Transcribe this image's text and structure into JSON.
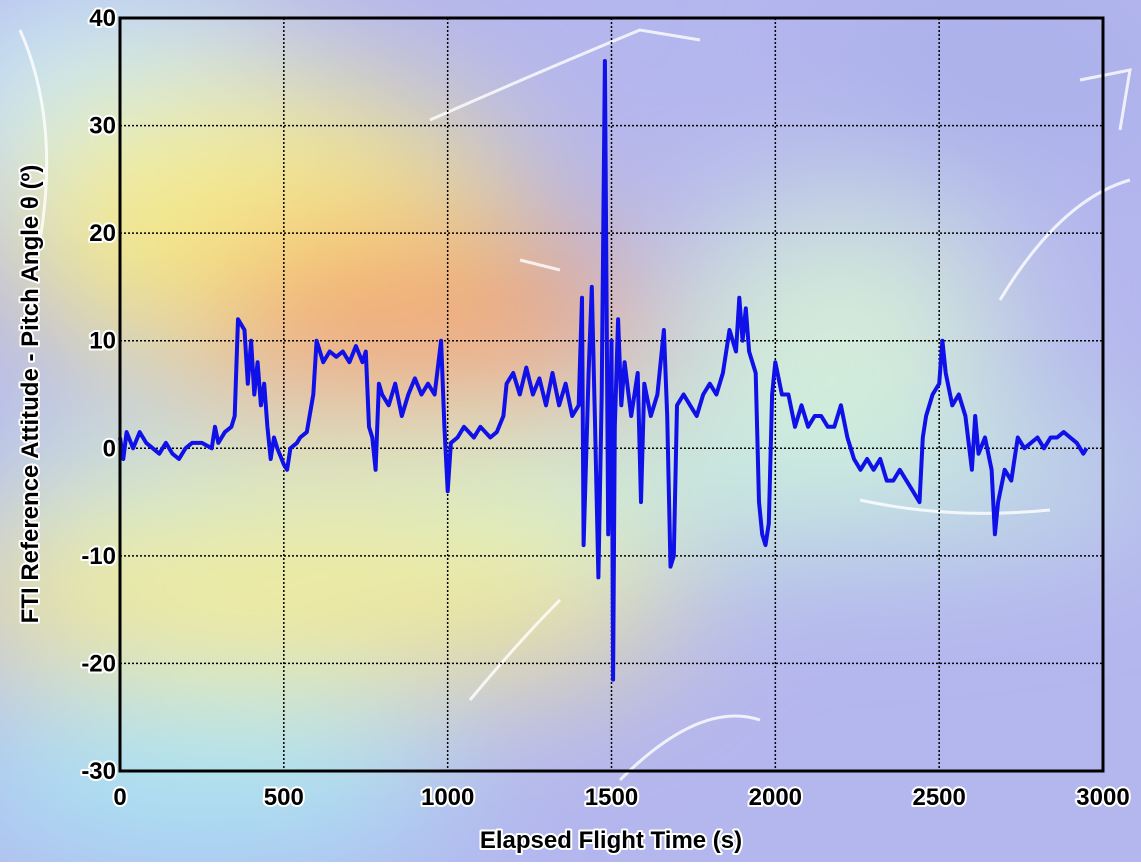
{
  "chart_data": {
    "type": "line",
    "xlabel": "Elapsed Flight Time (s)",
    "ylabel": "FTI Reference Attitude - Pitch Angle θ (º)",
    "x": [
      0,
      10,
      20,
      40,
      60,
      80,
      100,
      120,
      140,
      160,
      180,
      200,
      220,
      250,
      280,
      290,
      300,
      320,
      340,
      350,
      360,
      380,
      390,
      400,
      410,
      420,
      430,
      440,
      450,
      460,
      470,
      480,
      500,
      510,
      520,
      540,
      550,
      570,
      590,
      600,
      620,
      640,
      660,
      680,
      700,
      720,
      740,
      750,
      760,
      770,
      780,
      790,
      800,
      820,
      840,
      860,
      880,
      900,
      920,
      940,
      960,
      980,
      990,
      1000,
      1010,
      1030,
      1050,
      1080,
      1100,
      1130,
      1150,
      1170,
      1180,
      1200,
      1220,
      1240,
      1260,
      1280,
      1300,
      1320,
      1340,
      1360,
      1380,
      1400,
      1410,
      1415,
      1430,
      1440,
      1450,
      1460,
      1470,
      1480,
      1490,
      1500,
      1505,
      1510,
      1520,
      1530,
      1540,
      1560,
      1580,
      1590,
      1600,
      1620,
      1640,
      1660,
      1670,
      1680,
      1690,
      1700,
      1720,
      1740,
      1760,
      1780,
      1800,
      1820,
      1840,
      1860,
      1880,
      1890,
      1900,
      1910,
      1920,
      1940,
      1950,
      1960,
      1970,
      1980,
      1990,
      2000,
      2020,
      2040,
      2060,
      2080,
      2100,
      2120,
      2140,
      2160,
      2180,
      2200,
      2220,
      2240,
      2260,
      2280,
      2300,
      2320,
      2340,
      2360,
      2380,
      2400,
      2420,
      2440,
      2450,
      2460,
      2480,
      2500,
      2510,
      2520,
      2540,
      2560,
      2580,
      2600,
      2610,
      2620,
      2640,
      2660,
      2670,
      2680,
      2700,
      2720,
      2730,
      2740,
      2760,
      2780,
      2800,
      2820,
      2840,
      2860,
      2880,
      2900,
      2920,
      2940,
      2950
    ],
    "series": [
      {
        "color": "#1010e8",
        "values": [
          1,
          -1,
          1.5,
          0,
          1.5,
          0.5,
          0,
          -0.5,
          0.5,
          -0.5,
          -1,
          0,
          0.5,
          0.5,
          0,
          2,
          0.5,
          1.5,
          2,
          3,
          12,
          11,
          6,
          10,
          5,
          8,
          4,
          6,
          2,
          -1,
          1,
          0,
          -1.5,
          -2,
          0,
          0.5,
          1,
          1.5,
          5,
          10,
          8,
          9,
          8.5,
          9,
          8,
          9.5,
          8,
          9,
          2,
          1,
          -2,
          6,
          5,
          4,
          6,
          3,
          5,
          6.5,
          5,
          6,
          5,
          10,
          2,
          -4,
          0.5,
          1,
          2,
          1,
          2,
          1,
          1.5,
          3,
          6,
          7,
          5,
          7.5,
          5,
          6.5,
          4,
          7,
          4,
          6,
          3,
          4,
          14,
          -9,
          7,
          15,
          2,
          -12,
          5,
          36,
          -8,
          10,
          -21.5,
          2,
          12,
          4,
          8,
          3,
          7,
          -5,
          6,
          3,
          5,
          11,
          3,
          -11,
          -10,
          4,
          5,
          4,
          3,
          5,
          6,
          5,
          7,
          11,
          9,
          14,
          10,
          13,
          9,
          7,
          -5,
          -8,
          -9,
          -7,
          5,
          8,
          5,
          5,
          2,
          4,
          2,
          3,
          3,
          2,
          2,
          4,
          1,
          -1,
          -2,
          -1,
          -2,
          -1,
          -3,
          -3,
          -2,
          -3,
          -4,
          -5,
          1,
          3,
          5,
          6,
          10,
          7,
          4,
          5,
          3,
          -2,
          3,
          -0.5,
          1,
          -2,
          -8,
          -5,
          -2,
          -3,
          -1,
          1,
          0,
          0.5,
          1,
          0,
          1,
          1,
          1.5,
          1,
          0.5,
          -0.5,
          0
        ]
      }
    ],
    "xlim": [
      0,
      3000
    ],
    "ylim": [
      -30,
      40
    ],
    "xticks": [
      0,
      500,
      1000,
      1500,
      2000,
      2500,
      3000
    ],
    "yticks": [
      -30,
      -20,
      -10,
      0,
      10,
      20,
      30,
      40
    ],
    "grid": true
  }
}
